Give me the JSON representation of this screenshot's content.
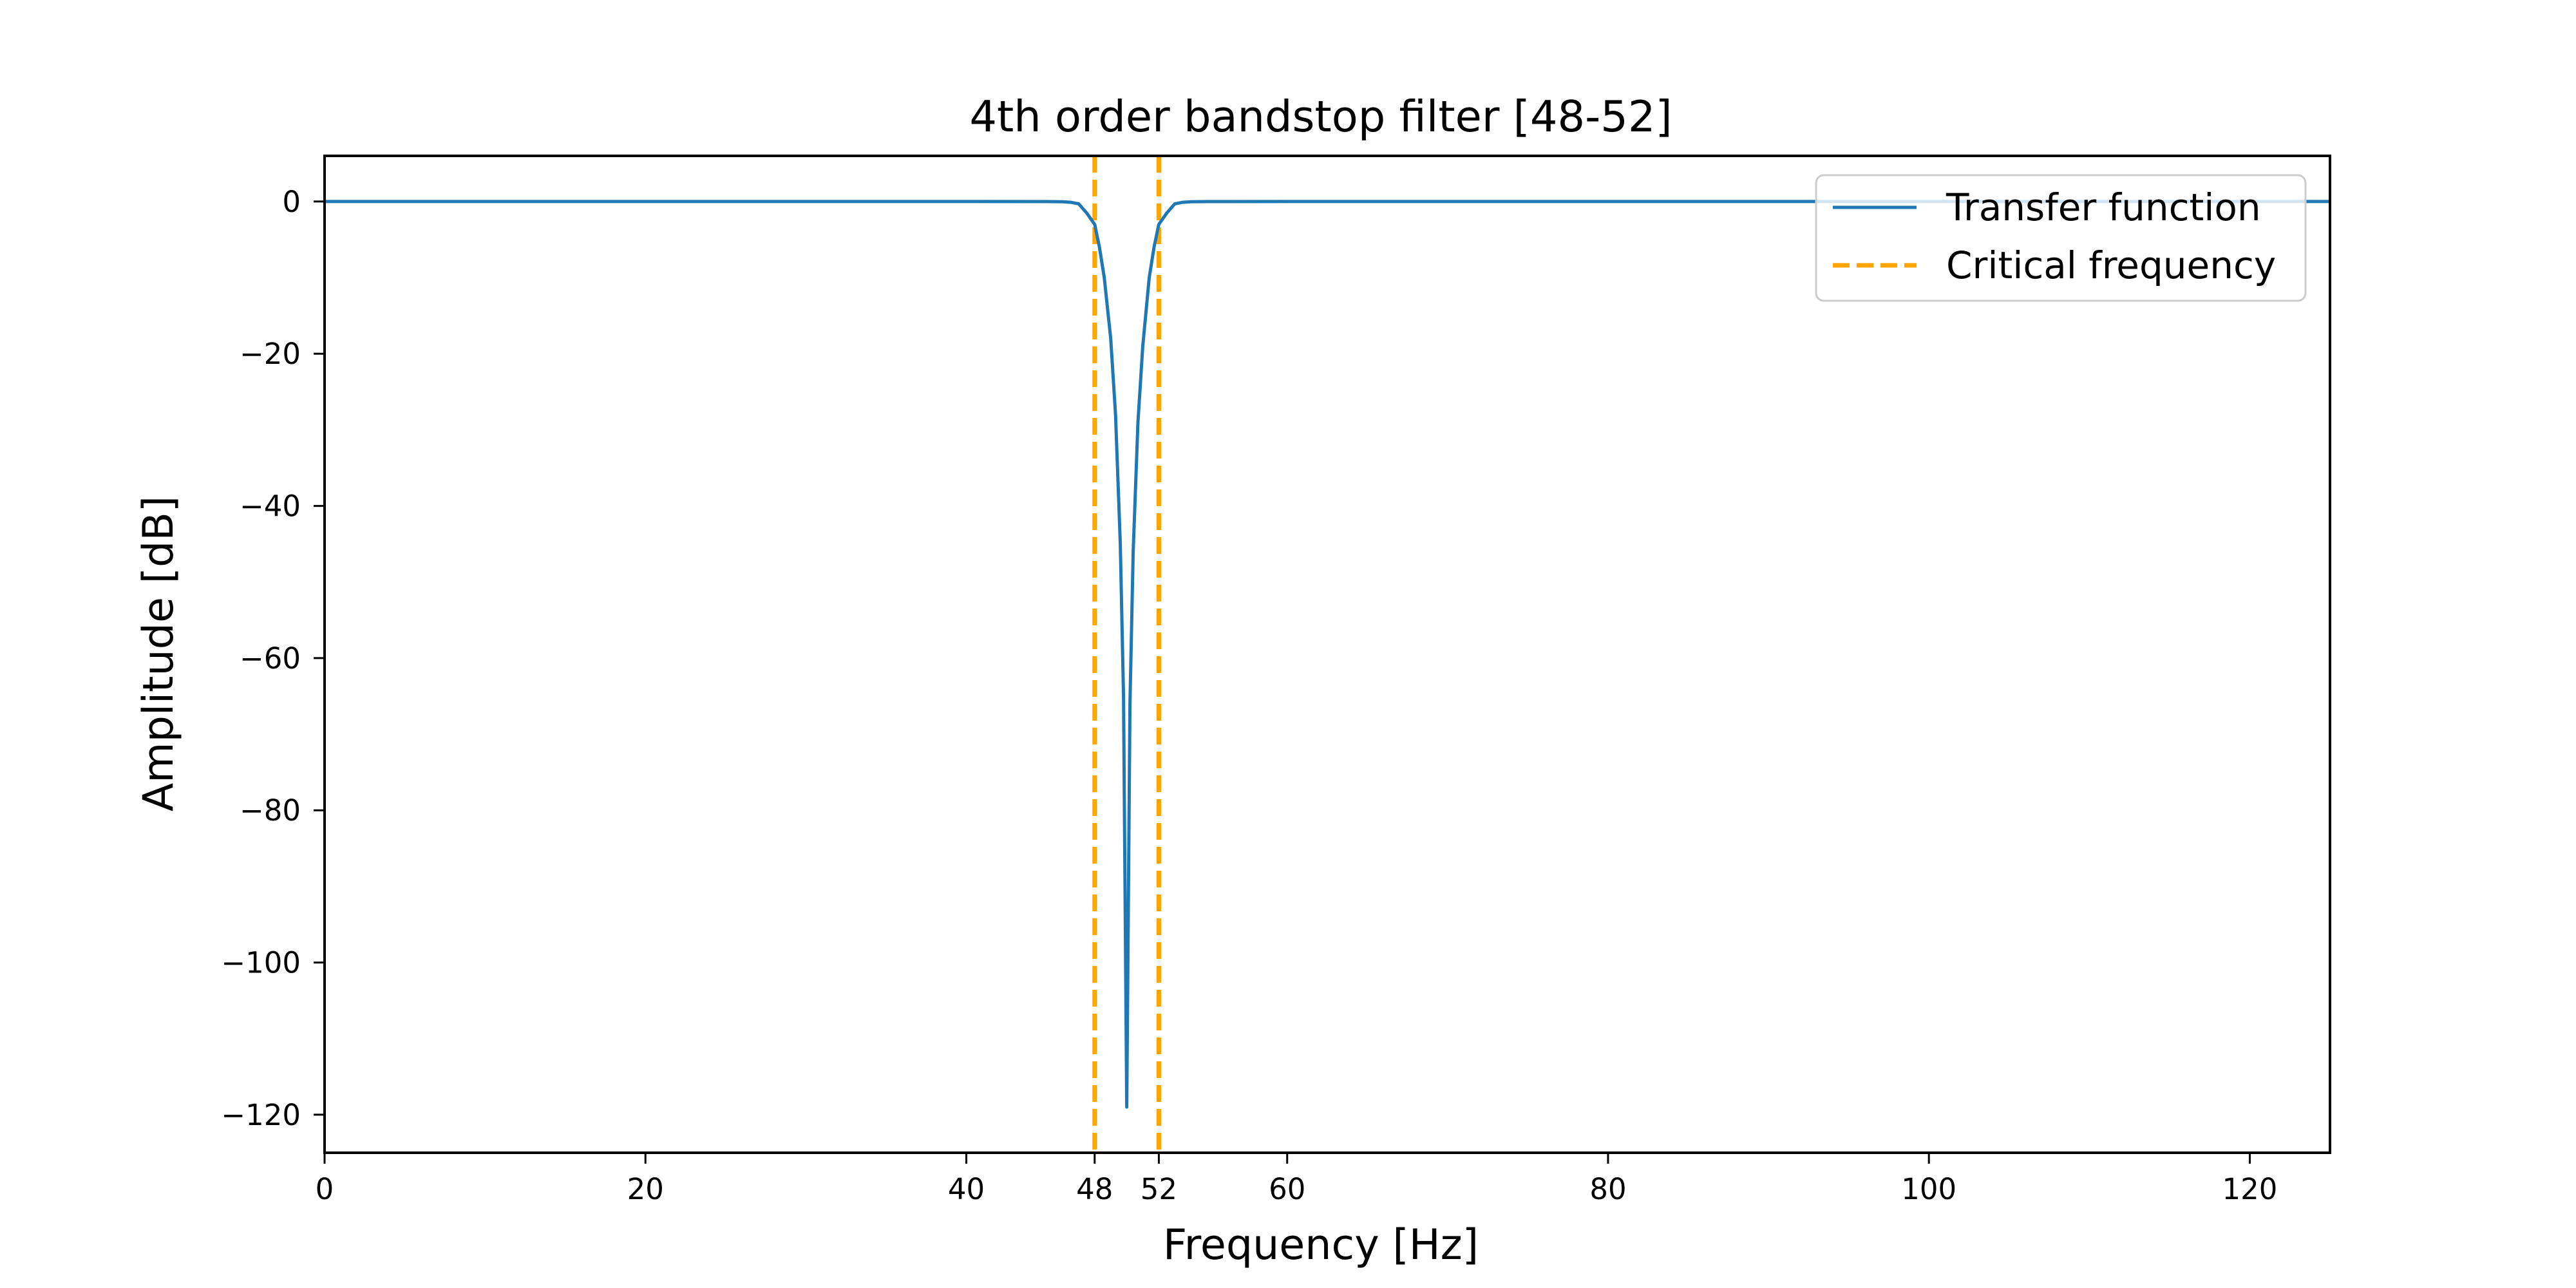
{
  "chart_data": {
    "type": "line",
    "title": "4th order bandstop filter [48-52]",
    "xlabel": "Frequency [Hz]",
    "ylabel": "Amplitude [dB]",
    "xlim": [
      0,
      125
    ],
    "ylim": [
      -125,
      6
    ],
    "xticks": [
      {
        "value": 0,
        "label": "0"
      },
      {
        "value": 20,
        "label": "20"
      },
      {
        "value": 40,
        "label": "40"
      },
      {
        "value": 48,
        "label": "48"
      },
      {
        "value": 52,
        "label": "52"
      },
      {
        "value": 60,
        "label": "60"
      },
      {
        "value": 80,
        "label": "80"
      },
      {
        "value": 100,
        "label": "100"
      },
      {
        "value": 120,
        "label": "120"
      }
    ],
    "yticks": [
      {
        "value": 0,
        "label": "0"
      },
      {
        "value": -20,
        "label": "−20"
      },
      {
        "value": -40,
        "label": "−40"
      },
      {
        "value": -60,
        "label": "−60"
      },
      {
        "value": -80,
        "label": "−80"
      },
      {
        "value": -100,
        "label": "−100"
      },
      {
        "value": -120,
        "label": "−120"
      }
    ],
    "grid": false,
    "legend_position": "top-right",
    "series": [
      {
        "name": "Transfer function",
        "color": "#1f77b4",
        "style": "solid",
        "points": [
          [
            0,
            0
          ],
          [
            20,
            0
          ],
          [
            40,
            0
          ],
          [
            45,
            -0.01
          ],
          [
            46,
            -0.03
          ],
          [
            46.5,
            -0.1
          ],
          [
            47,
            -0.3
          ],
          [
            47.5,
            -1.5
          ],
          [
            48,
            -3
          ],
          [
            48.3,
            -6
          ],
          [
            48.6,
            -10
          ],
          [
            49,
            -18
          ],
          [
            49.3,
            -28
          ],
          [
            49.6,
            -45
          ],
          [
            49.8,
            -65
          ],
          [
            50,
            -119
          ],
          [
            50.2,
            -66
          ],
          [
            50.4,
            -46
          ],
          [
            50.7,
            -29
          ],
          [
            51,
            -19
          ],
          [
            51.4,
            -10
          ],
          [
            51.7,
            -6
          ],
          [
            52,
            -3
          ],
          [
            52.5,
            -1.5
          ],
          [
            53,
            -0.3
          ],
          [
            53.5,
            -0.1
          ],
          [
            54,
            -0.03
          ],
          [
            55,
            -0.01
          ],
          [
            60,
            0
          ],
          [
            80,
            0
          ],
          [
            100,
            0
          ],
          [
            125,
            0
          ]
        ]
      },
      {
        "name": "Critical frequency",
        "color": "#ffa500",
        "style": "dashed",
        "x_values": [
          48,
          52
        ]
      }
    ]
  }
}
